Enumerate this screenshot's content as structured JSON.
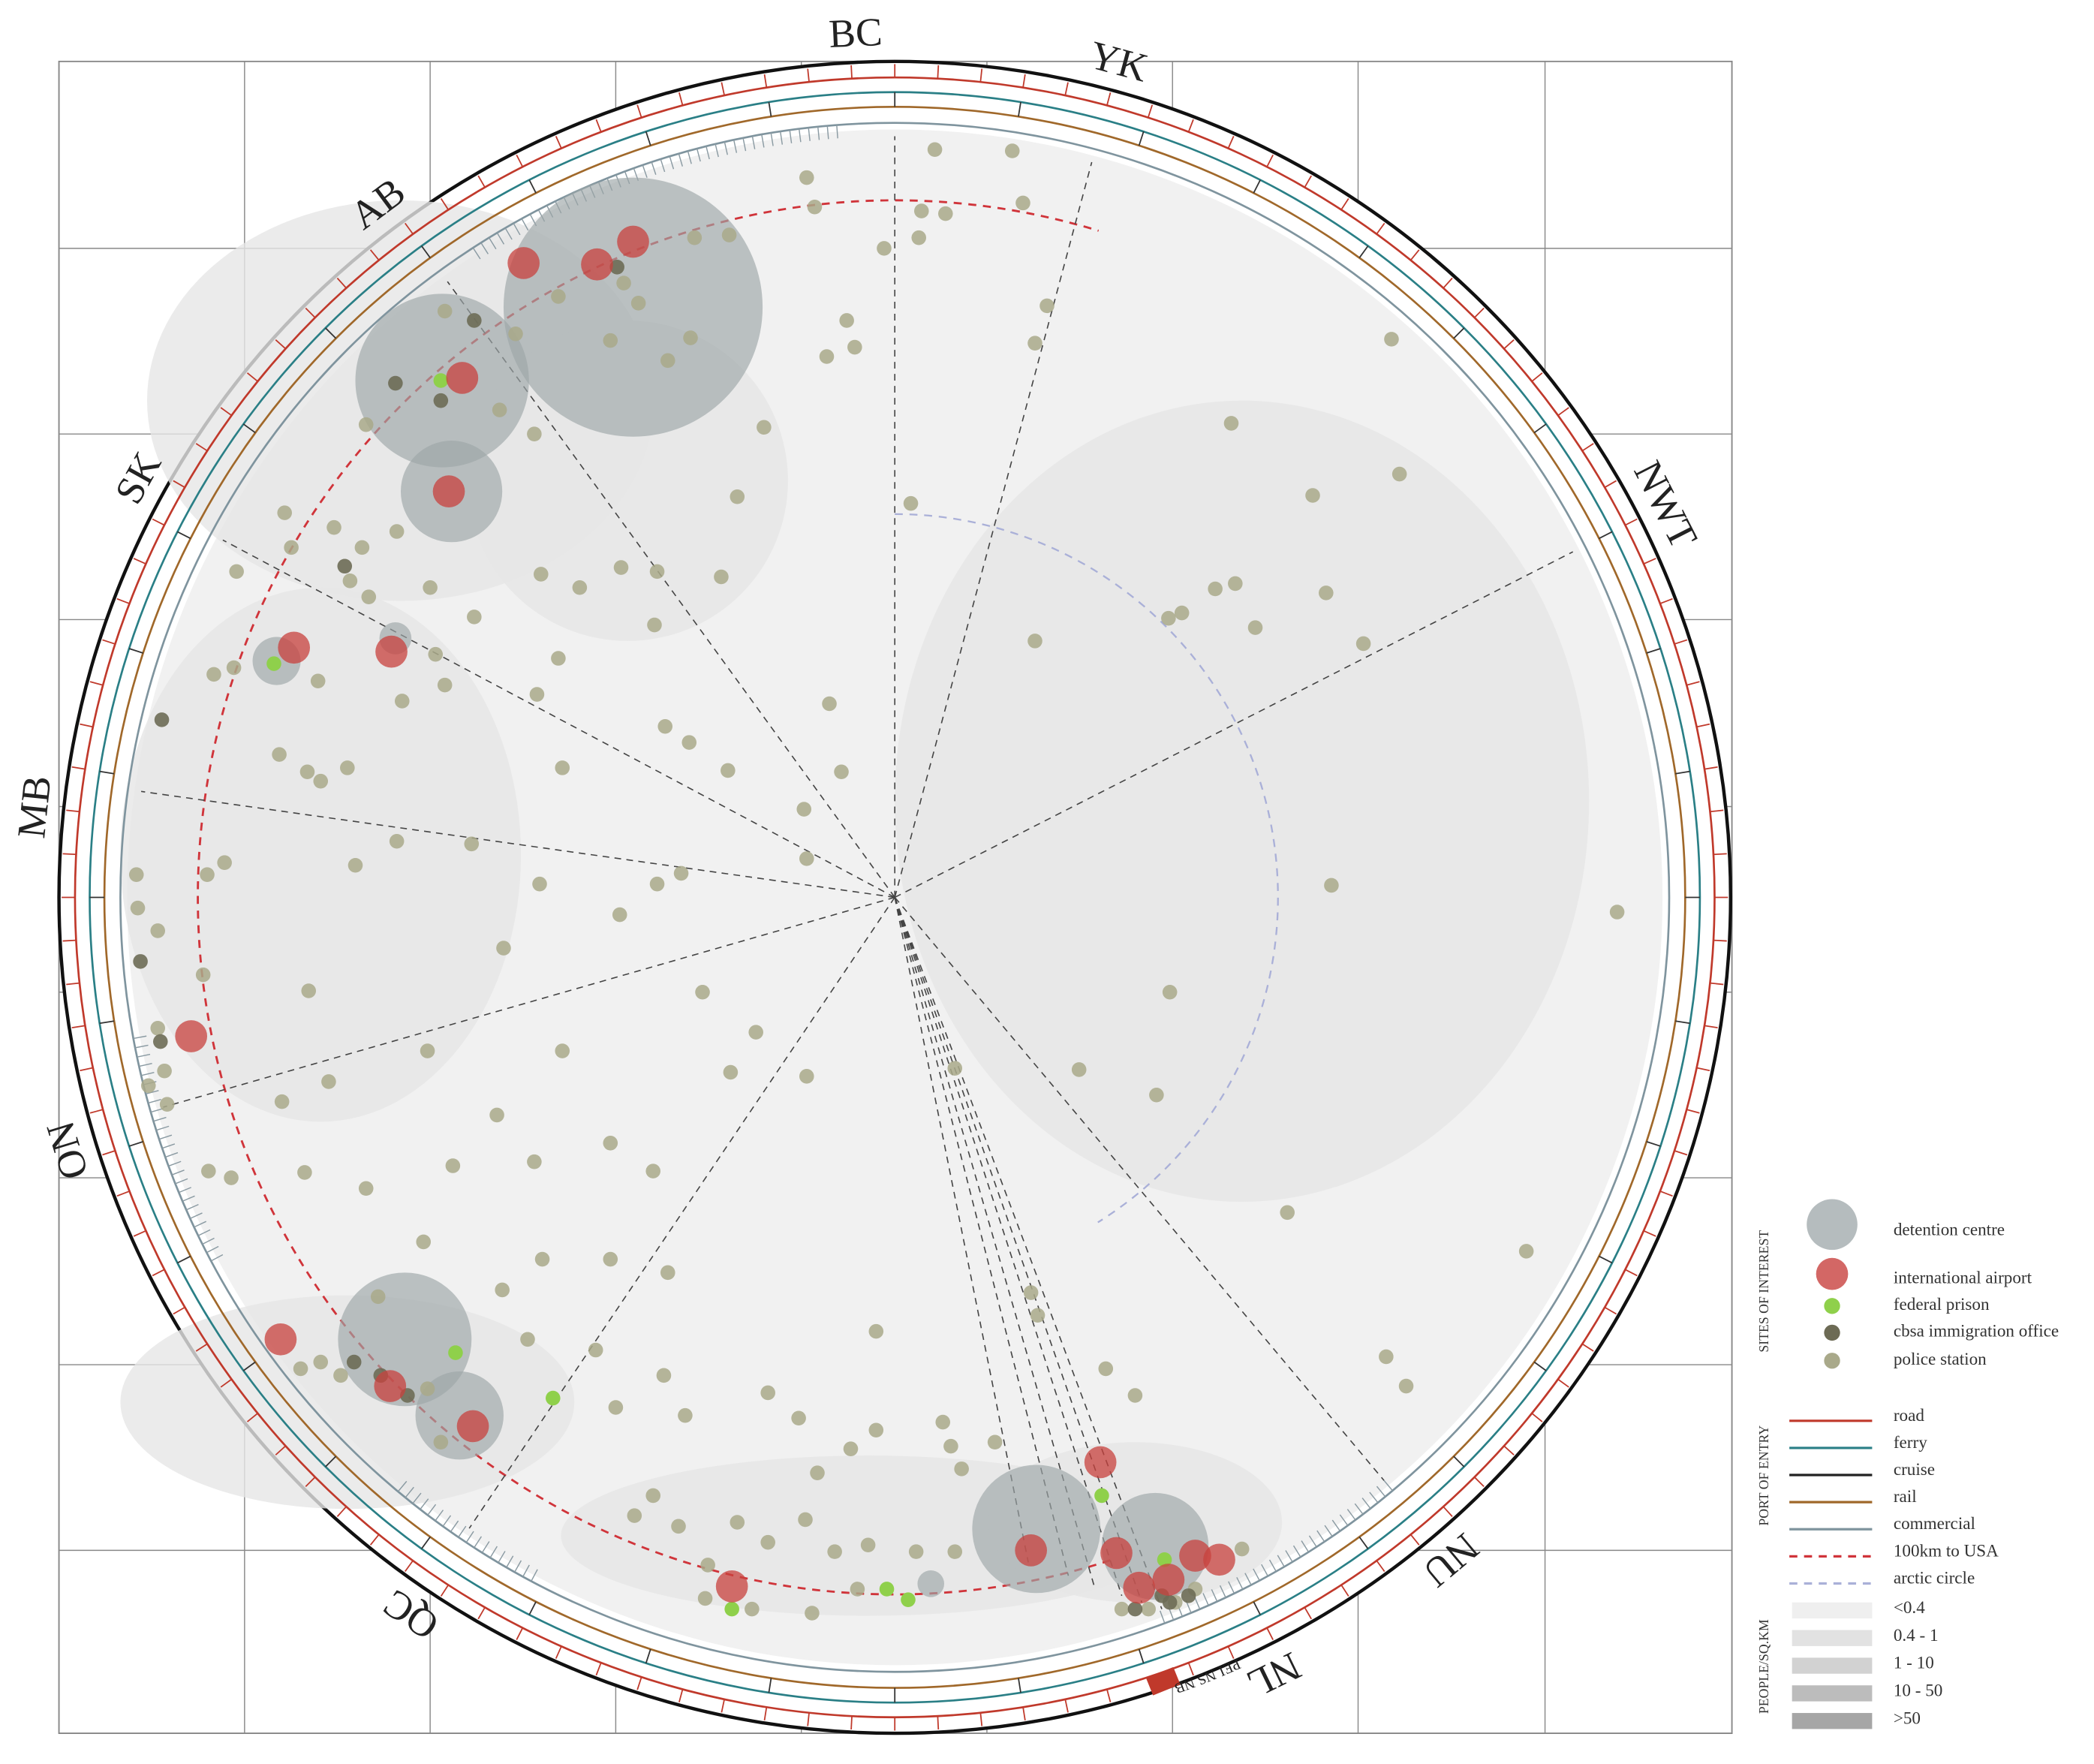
{
  "map": {
    "province_labels": [
      "BC",
      "YK",
      "AB",
      "SK",
      "MB",
      "ON",
      "QC",
      "NL",
      "NU",
      "NWT",
      "PEI",
      "NS",
      "NB"
    ],
    "legend": {
      "sites_of_interest": {
        "title": "SITES OF INTEREST",
        "items": [
          "detention centre",
          "international airport",
          "federal prison",
          "cbsa immigration office",
          "police station"
        ]
      },
      "port_of_entry": {
        "title": "PORT OF ENTRY",
        "items": [
          "road",
          "ferry",
          "cruise",
          "rail",
          "commercial",
          "100km to USA",
          "arctic circle"
        ]
      },
      "people_per_sqkm": {
        "title": "PEOPLE/SQ.KM",
        "items": [
          "<0.4",
          "0.4 - 1",
          "1 - 10",
          "10 - 50",
          ">50"
        ]
      }
    }
  }
}
